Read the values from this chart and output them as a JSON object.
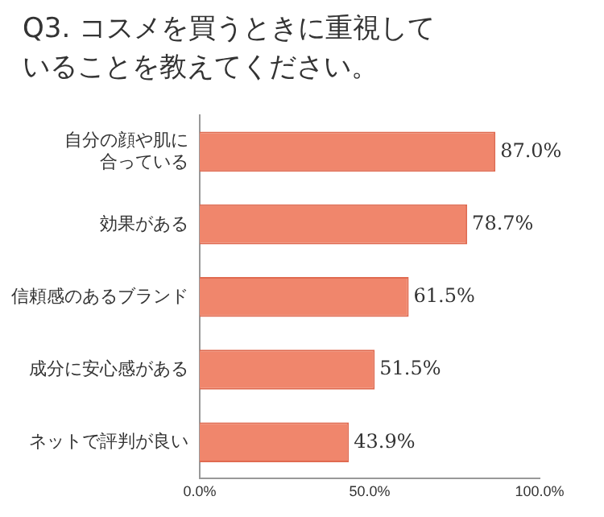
{
  "chart_data": {
    "type": "bar",
    "orientation": "horizontal",
    "title": "Q3. コスメを買うときに重視していることを教えてください。",
    "categories": [
      "自分の顔や肌に合っている",
      "効果がある",
      "信頼感のあるブランド",
      "成分に安心感がある",
      "ネットで評判が良い"
    ],
    "values": [
      87.0,
      78.7,
      61.5,
      51.5,
      43.9
    ],
    "value_labels": [
      "87.0%",
      "78.7%",
      "61.5%",
      "51.5%",
      "43.9%"
    ],
    "color": "#f0866c",
    "xlim": [
      0,
      100
    ],
    "xticks": [
      {
        "value": 0,
        "label": "0.0%"
      },
      {
        "value": 50,
        "label": "50.0%"
      },
      {
        "value": 100,
        "label": "100.0%"
      }
    ],
    "grid": false,
    "legend": false
  }
}
